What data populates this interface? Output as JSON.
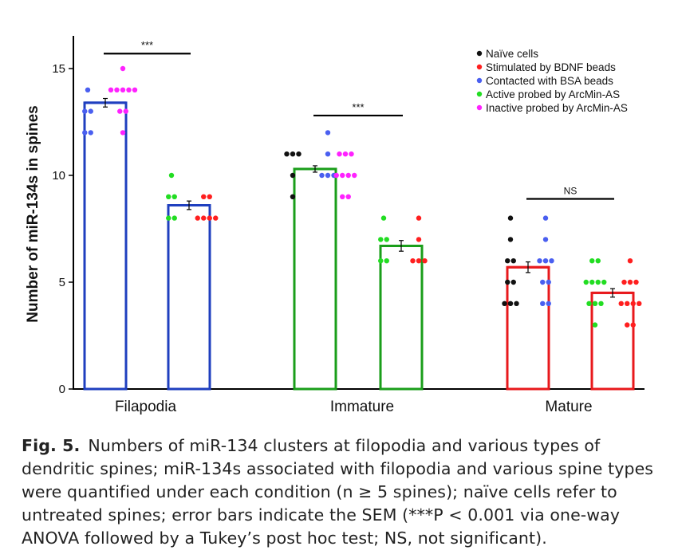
{
  "chart_data": {
    "type": "bar",
    "ylabel": "Number of miR-134s in spines",
    "ylim": [
      0,
      16
    ],
    "yticks": [
      0,
      5,
      10,
      15
    ],
    "categories": [
      "Filapodia",
      "Immature",
      "Mature"
    ],
    "group_colors": [
      "#1f3fbf",
      "#1a9e1a",
      "#e8191c"
    ],
    "legend": [
      {
        "label": "Naïve cells",
        "color": "#111111"
      },
      {
        "label": "Stimulated by BDNF beads",
        "color": "#ff1f1f"
      },
      {
        "label": "Contacted with BSA beads",
        "color": "#4a5ff0"
      },
      {
        "label": "Active probed by ArcMin-AS",
        "color": "#22dd22"
      },
      {
        "label": "Inactive probed by ArcMin-AS",
        "color": "#ff22ff"
      }
    ],
    "legend_position": "top-right",
    "bars": [
      {
        "group": "Filapodia",
        "value": 13.4,
        "sem": 0.2,
        "dots": [
          {
            "series": 2,
            "values": [
              14,
              13,
              13,
              12,
              12
            ]
          },
          {
            "series": 4,
            "values": [
              15,
              14,
              14,
              14,
              14,
              14,
              13,
              13,
              12
            ]
          }
        ]
      },
      {
        "group": "Filapodia",
        "value": 8.6,
        "sem": 0.2,
        "dots": [
          {
            "series": 3,
            "values": [
              10,
              9,
              9,
              8,
              8
            ]
          },
          {
            "series": 1,
            "values": [
              9,
              9,
              8,
              8,
              8,
              8
            ]
          }
        ]
      },
      {
        "group": "Immature",
        "value": 10.3,
        "sem": 0.15,
        "dots": [
          {
            "series": 0,
            "values": [
              11,
              11,
              11,
              10,
              9
            ]
          },
          {
            "series": 2,
            "values": [
              12,
              11,
              10,
              10,
              10
            ]
          },
          {
            "series": 4,
            "values": [
              11,
              11,
              11,
              10,
              10,
              10,
              10,
              9,
              9
            ]
          }
        ]
      },
      {
        "group": "Immature",
        "value": 6.7,
        "sem": 0.25,
        "dots": [
          {
            "series": 3,
            "values": [
              8,
              7,
              7,
              6,
              6
            ]
          },
          {
            "series": 1,
            "values": [
              8,
              7,
              6,
              6,
              6
            ]
          }
        ]
      },
      {
        "group": "Mature",
        "value": 5.7,
        "sem": 0.25,
        "dots": [
          {
            "series": 0,
            "values": [
              8,
              7,
              6,
              6,
              5,
              5,
              4,
              4,
              4
            ]
          },
          {
            "series": 2,
            "values": [
              8,
              7,
              6,
              6,
              6,
              5,
              5,
              4,
              4
            ]
          }
        ]
      },
      {
        "group": "Mature",
        "value": 4.5,
        "sem": 0.2,
        "dots": [
          {
            "series": 3,
            "values": [
              6,
              6,
              5,
              5,
              5,
              5,
              4,
              4,
              4,
              3
            ]
          },
          {
            "series": 1,
            "values": [
              6,
              5,
              5,
              5,
              4,
              4,
              4,
              4,
              3,
              3
            ]
          }
        ]
      }
    ],
    "significance": [
      {
        "label": "***",
        "from_bar": 0,
        "to_bar": 1,
        "y": 15.7
      },
      {
        "label": "***",
        "from_bar": 2,
        "to_bar": 3,
        "y": 12.8
      },
      {
        "label": "NS",
        "from_bar": 4,
        "to_bar": 5,
        "y": 8.9
      }
    ]
  },
  "caption": {
    "label": "Fig. 5.",
    "text": "Numbers of miR-134 clusters at filopodia and various types of dendritic spines; miR-134s associated with filopodia and various spine types were quantified under each condition (n ≥ 5 spines); naïve cells refer to untreated spines; error bars indicate the SEM (***P < 0.001 via one-way ANOVA followed by a Tukey’s post hoc test; NS, not significant)."
  }
}
